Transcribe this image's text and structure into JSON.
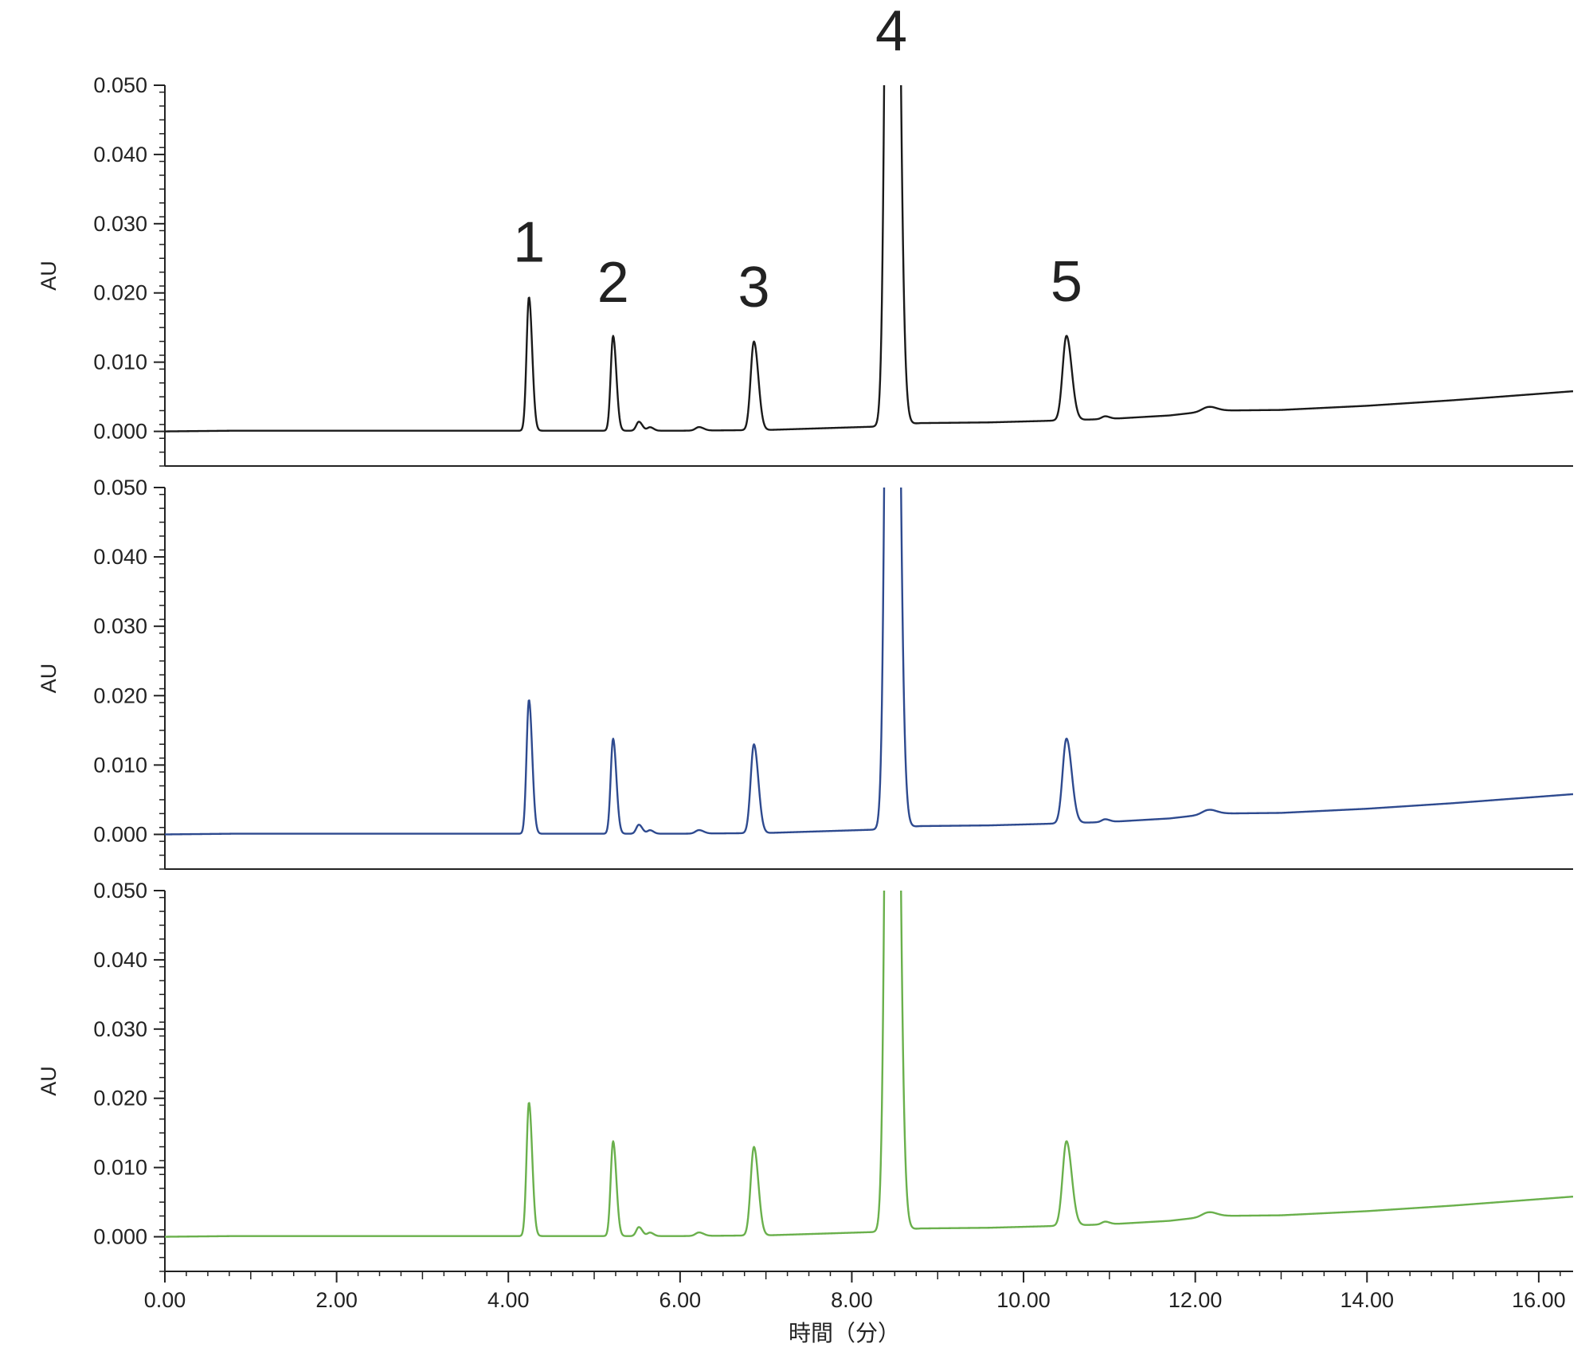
{
  "chart_data": {
    "type": "line",
    "xlabel": "時間（分）",
    "xlim": [
      0,
      16.4
    ],
    "x_ticks": [
      "0.00",
      "2.00",
      "4.00",
      "6.00",
      "8.00",
      "10.00",
      "12.00",
      "14.00",
      "16.00"
    ],
    "x_tick_values": [
      0,
      2,
      4,
      6,
      8,
      10,
      12,
      14,
      16
    ],
    "panels": [
      {
        "ylabel": "AU",
        "ylim": [
          -0.005,
          0.05
        ],
        "y_ticks": [
          "0.000",
          "0.010",
          "0.020",
          "0.030",
          "0.040",
          "0.050"
        ],
        "y_tick_values": [
          0,
          0.01,
          0.02,
          0.03,
          0.04,
          0.05
        ],
        "color": "#1a1a1a",
        "peak_labels": [
          {
            "text": "1",
            "x": 4.24,
            "y": 0.0245
          },
          {
            "text": "2",
            "x": 5.22,
            "y": 0.0187
          },
          {
            "text": "3",
            "x": 6.86,
            "y": 0.018
          },
          {
            "text": "4",
            "x": 8.46,
            "y": 0.055
          },
          {
            "text": "5",
            "x": 10.5,
            "y": 0.0188
          }
        ]
      },
      {
        "ylabel": "AU",
        "ylim": [
          -0.005,
          0.05
        ],
        "y_ticks": [
          "0.000",
          "0.010",
          "0.020",
          "0.030",
          "0.040",
          "0.050"
        ],
        "y_tick_values": [
          0,
          0.01,
          0.02,
          0.03,
          0.04,
          0.05
        ],
        "color": "#2e4a8f",
        "peak_labels": []
      },
      {
        "ylabel": "AU",
        "ylim": [
          -0.005,
          0.05
        ],
        "y_ticks": [
          "0.000",
          "0.010",
          "0.020",
          "0.030",
          "0.040",
          "0.050"
        ],
        "y_tick_values": [
          0,
          0.01,
          0.02,
          0.03,
          0.04,
          0.05
        ],
        "color": "#6ab04c",
        "peak_labels": []
      }
    ],
    "baseline": [
      [
        0,
        0
      ],
      [
        0.8,
        0.0001
      ],
      [
        2.3,
        0.0001
      ],
      [
        4.0,
        0.0001
      ],
      [
        5.0,
        0.0001
      ],
      [
        6.0,
        0.0001
      ],
      [
        7.0,
        0.0002
      ],
      [
        8.3,
        0.0007
      ],
      [
        8.8,
        0.0012
      ],
      [
        9.6,
        0.0013
      ],
      [
        10.2,
        0.0015
      ],
      [
        11.0,
        0.0018
      ],
      [
        11.7,
        0.0023
      ],
      [
        12.2,
        0.003
      ],
      [
        13.0,
        0.0031
      ],
      [
        14.0,
        0.0037
      ],
      [
        15.0,
        0.0045
      ],
      [
        16.4,
        0.0058
      ]
    ],
    "peaks": [
      {
        "x": 4.24,
        "height": 0.0193,
        "width": 0.028
      },
      {
        "x": 5.22,
        "height": 0.0137,
        "width": 0.028
      },
      {
        "x": 5.52,
        "height": 0.0013,
        "width": 0.03
      },
      {
        "x": 5.65,
        "height": 0.0005,
        "width": 0.03
      },
      {
        "x": 6.22,
        "height": 0.0005,
        "width": 0.04
      },
      {
        "x": 6.86,
        "height": 0.0128,
        "width": 0.038
      },
      {
        "x": 8.46,
        "height": 0.2,
        "width": 0.05
      },
      {
        "x": 10.5,
        "height": 0.0122,
        "width": 0.045
      },
      {
        "x": 10.95,
        "height": 0.0004,
        "width": 0.04
      },
      {
        "x": 12.15,
        "height": 0.0006,
        "width": 0.07
      }
    ]
  }
}
